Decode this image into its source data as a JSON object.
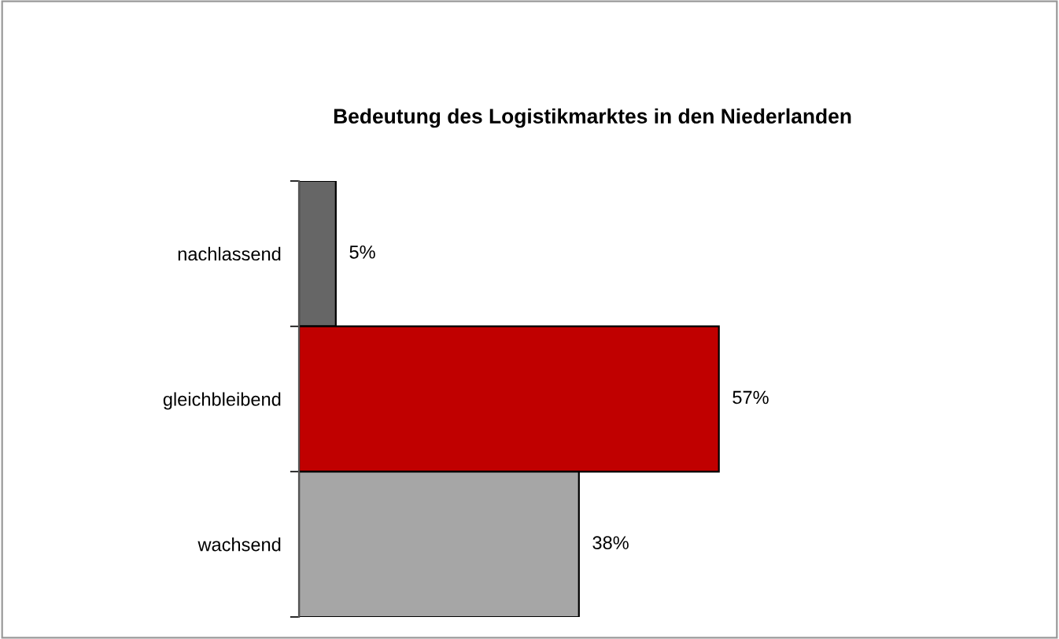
{
  "chart_data": {
    "type": "bar",
    "orientation": "horizontal",
    "title": "Bedeutung des Logistikmarktes in den Niederlanden",
    "categories": [
      "nachlassend",
      "gleichbleibend",
      "wachsend"
    ],
    "values": [
      5,
      57,
      38
    ],
    "colors": [
      "#666666",
      "#c00000",
      "#a6a6a6"
    ],
    "value_labels": [
      "5%",
      "57%",
      "38%"
    ],
    "legend": false,
    "grid": false
  }
}
